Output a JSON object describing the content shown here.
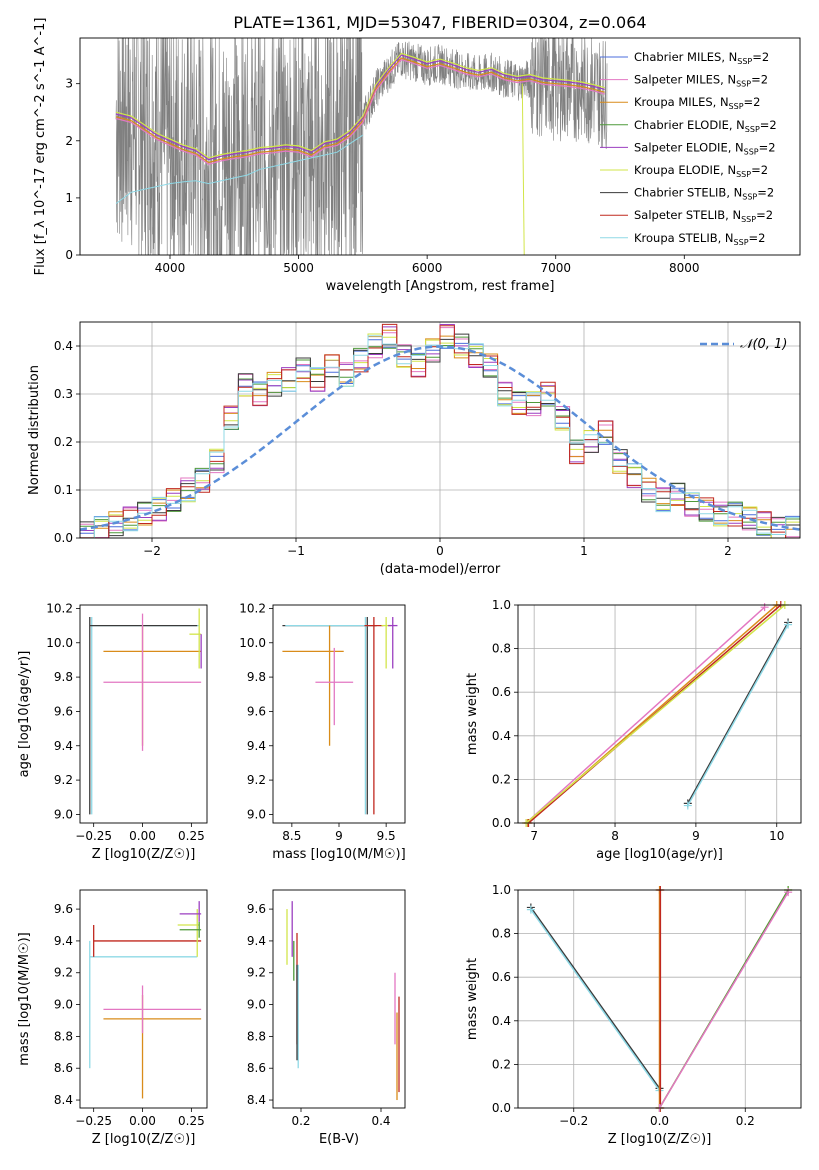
{
  "figure": {
    "title": "PLATE=1361, MJD=53047, FIBERID=0304, z=0.064"
  },
  "series_colors": {
    "Chabrier MILES": "#4b6edc",
    "Salpeter MILES": "#e377c2",
    "Kroupa MILES": "#d98c1a",
    "Chabrier ELODIE": "#4f9a3a",
    "Salpeter ELODIE": "#9b3fc0",
    "Kroupa ELODIE": "#d2e54a",
    "Chabrier STELIB": "#3a3a3a",
    "Salpeter STELIB": "#c0281f",
    "Kroupa STELIB": "#8fd9e6",
    "data": "#808080",
    "normal_curve": "#5b8ed8"
  },
  "chart_data": [
    {
      "id": "spectrum",
      "type": "line",
      "xlabel": "wavelength [Angstrom, rest frame]",
      "ylabel": "Flux [f_λ 10^-17 erg cm^-2 s^-1 A^-1]",
      "xlim": [
        3300,
        8900
      ],
      "ylim": [
        0,
        3.8
      ],
      "xticks": [
        4000,
        5000,
        6000,
        7000,
        8000
      ],
      "yticks": [
        0,
        1,
        2,
        3
      ],
      "grid": false,
      "legend_position": "right",
      "legend": [
        "Chabrier MILES, N_SSP=2",
        "Salpeter MILES, N_SSP=2",
        "Kroupa MILES, N_SSP=2",
        "Chabrier ELODIE, N_SSP=2",
        "Salpeter ELODIE, N_SSP=2",
        "Kroupa ELODIE, N_SSP=2",
        "Chabrier STELIB, N_SSP=2",
        "Salpeter STELIB, N_SSP=2",
        "Kroupa STELIB, N_SSP=2"
      ],
      "model_curve": {
        "x": [
          3580,
          3700,
          3800,
          3900,
          4000,
          4100,
          4200,
          4300,
          4400,
          4500,
          4600,
          4700,
          4800,
          4900,
          5000,
          5100,
          5200,
          5300,
          5400,
          5500,
          5600,
          5700,
          5800,
          5900,
          6000,
          6100,
          6200,
          6300,
          6400,
          6500,
          6600,
          6700,
          6800,
          6900,
          7000,
          7100,
          7200,
          7300,
          7380
        ],
        "y": [
          2.42,
          2.35,
          2.2,
          2.05,
          1.95,
          1.85,
          1.78,
          1.62,
          1.68,
          1.72,
          1.75,
          1.8,
          1.82,
          1.85,
          1.83,
          1.75,
          1.9,
          1.95,
          2.1,
          2.35,
          2.9,
          3.2,
          3.45,
          3.38,
          3.3,
          3.35,
          3.28,
          3.2,
          3.15,
          3.2,
          3.1,
          3.05,
          3.08,
          3.02,
          3.0,
          2.98,
          2.95,
          2.9,
          2.85
        ]
      },
      "stelib_curve": {
        "x": [
          3580,
          3700,
          3800,
          3900,
          4000,
          4100,
          4200,
          4300,
          4400,
          4500,
          4600,
          4700,
          4800,
          4900,
          5000,
          5100,
          5200,
          5300,
          5400,
          5500
        ],
        "y": [
          0.9,
          1.1,
          1.15,
          1.2,
          1.25,
          1.28,
          1.3,
          1.25,
          1.3,
          1.35,
          1.4,
          1.5,
          1.55,
          1.6,
          1.65,
          1.7,
          1.75,
          1.8,
          1.95,
          2.1
        ]
      }
    },
    {
      "id": "residuals",
      "type": "line",
      "xlabel": "(data-model)/error",
      "ylabel": "Normed distribution",
      "xlim": [
        -2.5,
        2.5
      ],
      "ylim": [
        0,
        0.45
      ],
      "xticks": [
        -2,
        -1,
        0,
        1,
        2
      ],
      "yticks": [
        0.0,
        0.1,
        0.2,
        0.3,
        0.4
      ],
      "grid": true,
      "legend": [
        "𝒩(0, 1)"
      ],
      "legend_position": "top-right",
      "histogram_bins": [
        -2.5,
        -2.4,
        -2.3,
        -2.2,
        -2.1,
        -2.0,
        -1.9,
        -1.8,
        -1.7,
        -1.6,
        -1.5,
        -1.4,
        -1.3,
        -1.2,
        -1.1,
        -1.0,
        -0.9,
        -0.8,
        -0.7,
        -0.6,
        -0.5,
        -0.4,
        -0.3,
        -0.2,
        -0.1,
        0.0,
        0.1,
        0.2,
        0.3,
        0.4,
        0.5,
        0.6,
        0.7,
        0.8,
        0.9,
        1.0,
        1.1,
        1.2,
        1.3,
        1.4,
        1.5,
        1.6,
        1.7,
        1.8,
        1.9,
        2.0,
        2.1,
        2.2,
        2.3,
        2.4
      ],
      "histogram_values": [
        0.01,
        0.02,
        0.03,
        0.04,
        0.05,
        0.06,
        0.08,
        0.1,
        0.12,
        0.16,
        0.25,
        0.32,
        0.3,
        0.32,
        0.33,
        0.35,
        0.33,
        0.36,
        0.34,
        0.37,
        0.4,
        0.42,
        0.38,
        0.36,
        0.39,
        0.42,
        0.4,
        0.38,
        0.36,
        0.3,
        0.28,
        0.28,
        0.3,
        0.25,
        0.18,
        0.2,
        0.22,
        0.16,
        0.13,
        0.1,
        0.08,
        0.09,
        0.07,
        0.06,
        0.05,
        0.05,
        0.04,
        0.03,
        0.02,
        0.02
      ]
    },
    {
      "id": "age_vs_Z",
      "type": "scatter",
      "xlabel": "Z [log10(Z/Z☉)]",
      "ylabel": "age  [log10(age/yr)]",
      "xlim": [
        -0.32,
        0.33
      ],
      "ylim": [
        8.95,
        10.22
      ],
      "xticks": [
        -0.25,
        0.0,
        0.25
      ],
      "xtick_labels": [
        "−0.25",
        "0.00",
        "0.25"
      ],
      "yticks": [
        9.0,
        9.2,
        9.4,
        9.6,
        9.8,
        10.0,
        10.2
      ],
      "grid": false,
      "points": [
        {
          "series": "Kroupa STELIB",
          "x": -0.26,
          "y": 10.1,
          "xerr": [
            0.0,
            0.55
          ],
          "yerr": [
            1.1,
            0.05
          ]
        },
        {
          "series": "Chabrier STELIB",
          "x": -0.27,
          "y": 10.1,
          "xerr": [
            0.0,
            0.55
          ],
          "yerr": [
            1.1,
            0.05
          ]
        },
        {
          "series": "Kroupa MILES",
          "x": 0.0,
          "y": 9.95,
          "xerr": [
            0.2,
            0.3
          ],
          "yerr": [
            0.55,
            0.15
          ]
        },
        {
          "series": "Salpeter MILES",
          "x": 0.0,
          "y": 9.77,
          "xerr": [
            0.2,
            0.3
          ],
          "yerr": [
            0.4,
            0.4
          ]
        },
        {
          "series": "Kroupa ELODIE",
          "x": 0.29,
          "y": 10.05,
          "xerr": [
            0.05,
            0.01
          ],
          "yerr": [
            0.2,
            0.15
          ]
        },
        {
          "series": "Salpeter ELODIE",
          "x": 0.3,
          "y": 9.95,
          "xerr": [
            0.0,
            0.0
          ],
          "yerr": [
            0.1,
            0.1
          ]
        }
      ]
    },
    {
      "id": "age_vs_mass",
      "type": "scatter",
      "xlabel": "mass [log10(M/M☉)]",
      "ylabel": "",
      "xlim": [
        8.3,
        9.7
      ],
      "ylim": [
        8.95,
        10.22
      ],
      "xticks": [
        8.5,
        9.0,
        9.5
      ],
      "yticks": [
        9.0,
        9.2,
        9.4,
        9.6,
        9.8,
        10.0,
        10.2
      ],
      "grid": false,
      "points": [
        {
          "series": "Chabrier STELIB",
          "x": 9.3,
          "y": 10.1,
          "xerr": [
            0.9,
            0.1
          ],
          "yerr": [
            1.1,
            0.05
          ]
        },
        {
          "series": "Kroupa STELIB",
          "x": 9.28,
          "y": 10.1,
          "xerr": [
            0.85,
            0.1
          ],
          "yerr": [
            1.1,
            0.05
          ]
        },
        {
          "series": "Kroupa MILES",
          "x": 8.9,
          "y": 9.95,
          "xerr": [
            0.5,
            0.15
          ],
          "yerr": [
            0.55,
            0.15
          ]
        },
        {
          "series": "Salpeter MILES",
          "x": 8.95,
          "y": 9.77,
          "xerr": [
            0.2,
            0.2
          ],
          "yerr": [
            0.25,
            0.2
          ]
        },
        {
          "series": "Salpeter STELIB",
          "x": 9.37,
          "y": 10.1,
          "xerr": [
            0.1,
            0.1
          ],
          "yerr": [
            1.1,
            0.05
          ]
        },
        {
          "series": "Kroupa ELODIE",
          "x": 9.5,
          "y": 10.1,
          "xerr": [
            0.05,
            0.05
          ],
          "yerr": [
            0.25,
            0.05
          ]
        },
        {
          "series": "Salpeter ELODIE",
          "x": 9.57,
          "y": 10.1,
          "xerr": [
            0.05,
            0.05
          ],
          "yerr": [
            0.25,
            0.05
          ]
        }
      ]
    },
    {
      "id": "massweight_vs_age",
      "type": "line",
      "xlabel": "age  [log10(age/yr)]",
      "ylabel": "mass weight",
      "xlim": [
        6.8,
        10.3
      ],
      "ylim": [
        0.0,
        1.0
      ],
      "xticks": [
        7,
        8,
        9,
        10
      ],
      "yticks": [
        0.0,
        0.2,
        0.4,
        0.6,
        0.8,
        1.0
      ],
      "grid": true,
      "lines": [
        {
          "series": "Salpeter MILES",
          "x": [
            6.9,
            9.85
          ],
          "y": [
            0.0,
            0.99
          ]
        },
        {
          "series": "Kroupa MILES",
          "x": [
            6.92,
            10.0
          ],
          "y": [
            0.0,
            1.0
          ]
        },
        {
          "series": "Salpeter STELIB",
          "x": [
            6.93,
            10.05
          ],
          "y": [
            0.0,
            1.0
          ]
        },
        {
          "series": "Kroupa ELODIE",
          "x": [
            6.9,
            10.1
          ],
          "y": [
            0.0,
            1.0
          ]
        },
        {
          "series": "Chabrier STELIB",
          "x": [
            8.9,
            10.14
          ],
          "y": [
            0.09,
            0.92
          ]
        },
        {
          "series": "Kroupa STELIB",
          "x": [
            8.9,
            10.14
          ],
          "y": [
            0.08,
            0.91
          ]
        }
      ]
    },
    {
      "id": "mass_vs_Z",
      "type": "scatter",
      "xlabel": "Z [log10(Z/Z☉)]",
      "ylabel": "mass [log10(M/M☉)]",
      "xlim": [
        -0.32,
        0.33
      ],
      "ylim": [
        8.35,
        9.72
      ],
      "xticks": [
        -0.25,
        0.0,
        0.25
      ],
      "xtick_labels": [
        "−0.25",
        "0.00",
        "0.25"
      ],
      "yticks": [
        8.4,
        8.6,
        8.8,
        9.0,
        9.2,
        9.4,
        9.6
      ],
      "grid": false,
      "points": [
        {
          "series": "Kroupa STELIB",
          "x": -0.27,
          "y": 9.3,
          "xerr": [
            0.0,
            0.55
          ],
          "yerr": [
            0.7,
            0.1
          ]
        },
        {
          "series": "Salpeter STELIB",
          "x": -0.25,
          "y": 9.4,
          "xerr": [
            0.0,
            0.55
          ],
          "yerr": [
            0.1,
            0.1
          ]
        },
        {
          "series": "Kroupa MILES",
          "x": 0.0,
          "y": 8.91,
          "xerr": [
            0.2,
            0.3
          ],
          "yerr": [
            0.5,
            0.15
          ]
        },
        {
          "series": "Salpeter MILES",
          "x": 0.0,
          "y": 8.97,
          "xerr": [
            0.2,
            0.3
          ],
          "yerr": [
            0.15,
            0.15
          ]
        },
        {
          "series": "Kroupa ELODIE",
          "x": 0.28,
          "y": 9.5,
          "xerr": [
            0.1,
            0.01
          ],
          "yerr": [
            0.2,
            0.1
          ]
        },
        {
          "series": "Salpeter ELODIE",
          "x": 0.29,
          "y": 9.57,
          "xerr": [
            0.1,
            0.01
          ],
          "yerr": [
            0.05,
            0.08
          ]
        },
        {
          "series": "Chabrier ELODIE",
          "x": 0.29,
          "y": 9.47,
          "xerr": [
            0.1,
            0.01
          ],
          "yerr": [
            0.05,
            0.05
          ]
        }
      ]
    },
    {
      "id": "mass_vs_EBV",
      "type": "scatter",
      "xlabel": "E(B-V)",
      "ylabel": "",
      "xlim": [
        0.13,
        0.46
      ],
      "ylim": [
        8.35,
        9.72
      ],
      "xticks": [
        0.2,
        0.4
      ],
      "yticks": [
        8.4,
        8.6,
        8.8,
        9.0,
        9.2,
        9.4,
        9.6
      ],
      "grid": false,
      "points": [
        {
          "series": "Kroupa ELODIE",
          "x": 0.165,
          "y": 9.45,
          "yerr": [
            0.2,
            0.15
          ]
        },
        {
          "series": "Salpeter ELODIE",
          "x": 0.178,
          "y": 9.5,
          "yerr": [
            0.2,
            0.15
          ]
        },
        {
          "series": "Chabrier ELODIE",
          "x": 0.182,
          "y": 9.3,
          "yerr": [
            0.15,
            0.1
          ]
        },
        {
          "series": "Salpeter STELIB",
          "x": 0.19,
          "y": 9.2,
          "yerr": [
            0.45,
            0.25
          ]
        },
        {
          "series": "Kroupa STELIB",
          "x": 0.193,
          "y": 9.0,
          "yerr": [
            0.4,
            0.25
          ]
        },
        {
          "series": "Chabrier STELIB",
          "x": 0.19,
          "y": 8.95,
          "yerr": [
            0.3,
            0.3
          ]
        },
        {
          "series": "Salpeter MILES",
          "x": 0.435,
          "y": 9.0,
          "yerr": [
            0.25,
            0.2
          ]
        },
        {
          "series": "Kroupa MILES",
          "x": 0.44,
          "y": 8.6,
          "yerr": [
            0.2,
            0.35
          ]
        },
        {
          "series": "Salpeter STELIB",
          "x": 0.445,
          "y": 8.75,
          "yerr": [
            0.3,
            0.3
          ]
        }
      ]
    },
    {
      "id": "massweight_vs_Z",
      "type": "line",
      "xlabel": "Z [log10(Z/Z☉)]",
      "ylabel": "mass weight",
      "xlim": [
        -0.33,
        0.33
      ],
      "ylim": [
        0.0,
        1.0
      ],
      "xticks": [
        -0.2,
        0.0,
        0.2
      ],
      "xtick_labels": [
        "−0.2",
        "0.0",
        "0.2"
      ],
      "yticks": [
        0.0,
        0.2,
        0.4,
        0.6,
        0.8,
        1.0
      ],
      "grid": true,
      "lines": [
        {
          "series": "Chabrier STELIB",
          "x": [
            -0.3,
            0.0
          ],
          "y": [
            0.92,
            0.09
          ]
        },
        {
          "series": "Kroupa STELIB",
          "x": [
            -0.3,
            0.0
          ],
          "y": [
            0.91,
            0.08
          ]
        },
        {
          "series": "Kroupa MILES",
          "x": [
            0.0,
            0.0
          ],
          "y": [
            0.0,
            1.0
          ]
        },
        {
          "series": "Salpeter STELIB",
          "x": [
            0.002,
            0.002
          ],
          "y": [
            0.0,
            1.0
          ]
        },
        {
          "series": "Kroupa ELODIE",
          "x": [
            0.0,
            0.3
          ],
          "y": [
            0.0,
            1.0
          ]
        },
        {
          "series": "Chabrier ELODIE",
          "x": [
            0.0,
            0.3
          ],
          "y": [
            0.0,
            1.0
          ]
        },
        {
          "series": "Salpeter MILES",
          "x": [
            0.0,
            0.3
          ],
          "y": [
            0.0,
            0.99
          ]
        }
      ]
    }
  ]
}
